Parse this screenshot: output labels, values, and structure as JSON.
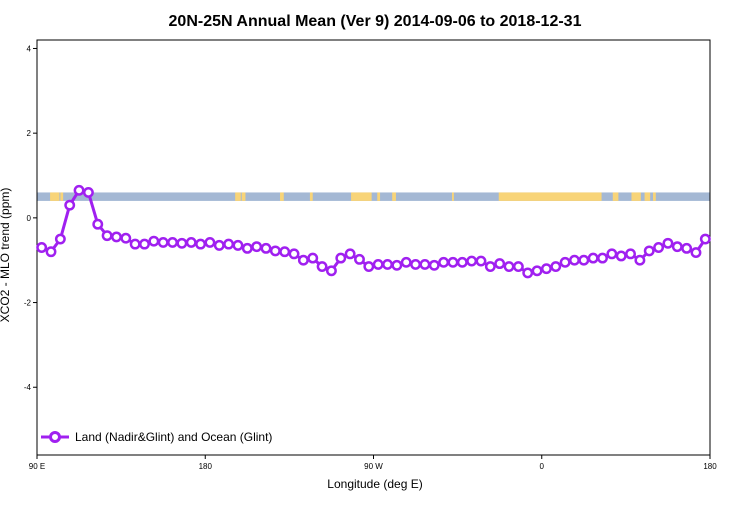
{
  "chart_data": {
    "type": "line",
    "title": "20N-25N Annual Mean (Ver 9)   2014-09-06 to 2018-12-31",
    "xlabel": "Longitude (deg E)",
    "ylabel": "XCO2 - MLO trend (ppm)",
    "xlim": [
      90,
      450
    ],
    "ylim": [
      -5.6,
      4.2
    ],
    "x_ticks": [
      {
        "value": 90,
        "label": "90 E"
      },
      {
        "value": 180,
        "label": "180"
      },
      {
        "value": 270,
        "label": "90 W"
      },
      {
        "value": 360,
        "label": "0"
      },
      {
        "value": 450,
        "label": "180"
      }
    ],
    "y_ticks": [
      {
        "value": 4,
        "label": "4"
      },
      {
        "value": 2,
        "label": "2"
      },
      {
        "value": 0,
        "label": "0"
      },
      {
        "value": -2,
        "label": "-2"
      },
      {
        "value": -4,
        "label": "-4"
      }
    ],
    "legend": {
      "position": "bottom-left"
    },
    "land_band": {
      "y_range": [
        0.4,
        0.6
      ],
      "ocean_color": "#a4b8d4",
      "land_color": "#f8d478"
    },
    "series": [
      {
        "name": "Land (Nadir&Glint) and Ocean (Glint)",
        "color": "#a020f0",
        "x": [
          92.5,
          97.5,
          102.5,
          107.5,
          112.5,
          117.5,
          122.5,
          127.5,
          132.5,
          137.5,
          142.5,
          147.5,
          152.5,
          157.5,
          162.5,
          167.5,
          172.5,
          177.5,
          182.5,
          187.5,
          192.5,
          197.5,
          202.5,
          207.5,
          212.5,
          217.5,
          222.5,
          227.5,
          232.5,
          237.5,
          242.5,
          247.5,
          252.5,
          257.5,
          262.5,
          267.5,
          272.5,
          277.5,
          282.5,
          287.5,
          292.5,
          297.5,
          302.5,
          307.5,
          312.5,
          317.5,
          322.5,
          327.5,
          332.5,
          337.5,
          342.5,
          347.5,
          352.5,
          357.5,
          362.5,
          367.5,
          372.5,
          377.5,
          382.5,
          387.5,
          392.5,
          397.5,
          402.5,
          407.5,
          412.5,
          417.5,
          422.5,
          427.5,
          432.5,
          437.5,
          442.5,
          447.5
        ],
        "y": [
          -0.7,
          -0.8,
          -0.5,
          0.3,
          0.65,
          0.6,
          -0.15,
          -0.42,
          -0.45,
          -0.48,
          -0.62,
          -0.62,
          -0.55,
          -0.58,
          -0.58,
          -0.6,
          -0.58,
          -0.62,
          -0.58,
          -0.65,
          -0.62,
          -0.65,
          -0.72,
          -0.68,
          -0.72,
          -0.78,
          -0.8,
          -0.85,
          -1.0,
          -0.95,
          -1.15,
          -1.25,
          -0.95,
          -0.85,
          -0.98,
          -1.15,
          -1.1,
          -1.1,
          -1.12,
          -1.05,
          -1.1,
          -1.1,
          -1.12,
          -1.05,
          -1.05,
          -1.05,
          -1.02,
          -1.02,
          -1.15,
          -1.08,
          -1.15,
          -1.15,
          -1.3,
          -1.25,
          -1.2,
          -1.15,
          -1.05,
          -1.0,
          -1.0,
          -0.95,
          -0.95,
          -0.85,
          -0.9,
          -0.85,
          -1.0,
          -0.78,
          -0.7,
          -0.6,
          -0.68,
          -0.72,
          -0.82,
          -0.5
        ]
      }
    ]
  }
}
